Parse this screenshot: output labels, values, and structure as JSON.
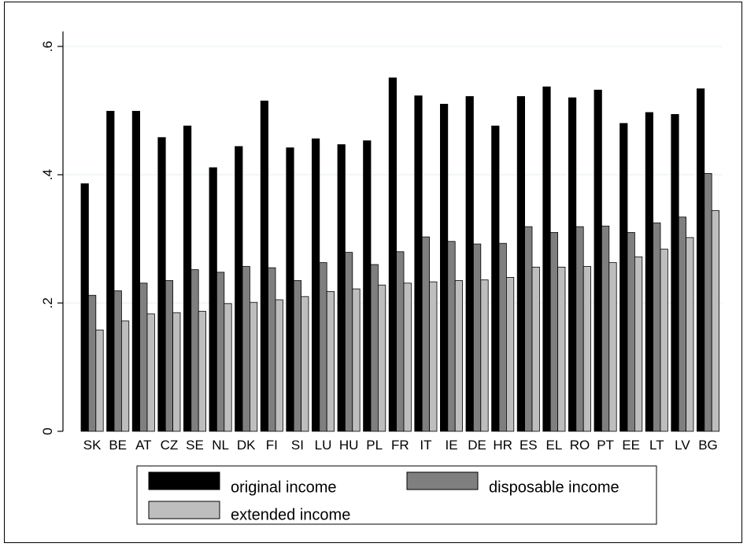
{
  "chart_data": {
    "type": "bar",
    "categories": [
      "SK",
      "BE",
      "AT",
      "CZ",
      "SE",
      "NL",
      "DK",
      "FI",
      "SI",
      "LU",
      "HU",
      "PL",
      "FR",
      "IT",
      "IE",
      "DE",
      "HR",
      "ES",
      "EL",
      "RO",
      "PT",
      "EE",
      "LT",
      "LV",
      "BG"
    ],
    "series": [
      {
        "name": "original income",
        "color": "#000000",
        "values": [
          0.386,
          0.499,
          0.499,
          0.458,
          0.476,
          0.411,
          0.444,
          0.515,
          0.442,
          0.456,
          0.447,
          0.453,
          0.551,
          0.523,
          0.51,
          0.522,
          0.476,
          0.522,
          0.537,
          0.52,
          0.532,
          0.48,
          0.497,
          0.494,
          0.534
        ]
      },
      {
        "name": "disposable income",
        "color": "#7f7f7f",
        "values": [
          0.212,
          0.219,
          0.231,
          0.235,
          0.252,
          0.248,
          0.257,
          0.255,
          0.235,
          0.263,
          0.279,
          0.26,
          0.28,
          0.303,
          0.296,
          0.292,
          0.293,
          0.319,
          0.31,
          0.319,
          0.32,
          0.31,
          0.325,
          0.334,
          0.402
        ]
      },
      {
        "name": "extended income",
        "color": "#bebebe",
        "values": [
          0.158,
          0.172,
          0.183,
          0.185,
          0.187,
          0.199,
          0.201,
          0.205,
          0.21,
          0.218,
          0.222,
          0.228,
          0.231,
          0.233,
          0.235,
          0.236,
          0.24,
          0.256,
          0.256,
          0.257,
          0.263,
          0.272,
          0.284,
          0.302,
          0.344
        ]
      }
    ],
    "yticks": [
      0,
      0.2,
      0.4,
      0.6
    ],
    "ytick_labels": [
      "0",
      ".2",
      ".4",
      ".6"
    ],
    "ylim": [
      0,
      0.6
    ],
    "grid": true,
    "legend_position": "bottom"
  }
}
